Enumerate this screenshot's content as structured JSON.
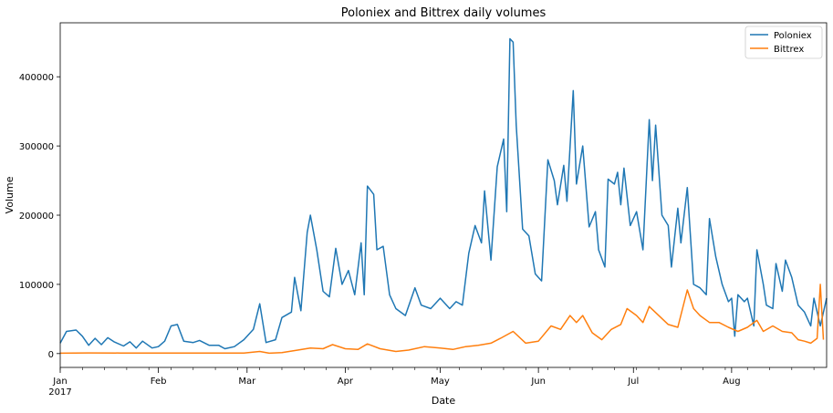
{
  "chart_data": {
    "type": "line",
    "title": "Poloniex and Bittrex daily volumes",
    "xlabel": "Date",
    "ylabel": "Volume",
    "x_start": "2017-01-01",
    "x_end": "2017-08-31",
    "xlim": [
      "2017-01-01",
      "2017-08-31"
    ],
    "ylim": [
      -20000,
      478000
    ],
    "y_ticks": [
      0,
      100000,
      200000,
      300000,
      400000
    ],
    "y_tick_labels": [
      "0",
      "100000",
      "200000",
      "300000",
      "400000"
    ],
    "x_tick_labels": [
      "Jan",
      "Feb",
      "Mar",
      "Apr",
      "May",
      "Jun",
      "Jul",
      "Aug"
    ],
    "x_tick_dates": [
      "2017-01-01",
      "2017-02-01",
      "2017-03-01",
      "2017-04-01",
      "2017-05-01",
      "2017-06-01",
      "2017-07-01",
      "2017-08-01"
    ],
    "x_year_label": "2017",
    "grid": false,
    "legend_position": "top-right",
    "series": [
      {
        "name": "Poloniex",
        "color": "#1f77b4",
        "points": [
          [
            "2017-01-01",
            15000
          ],
          [
            "2017-01-03",
            32000
          ],
          [
            "2017-01-06",
            34000
          ],
          [
            "2017-01-08",
            25000
          ],
          [
            "2017-01-10",
            12000
          ],
          [
            "2017-01-12",
            22000
          ],
          [
            "2017-01-14",
            13000
          ],
          [
            "2017-01-16",
            23000
          ],
          [
            "2017-01-18",
            17000
          ],
          [
            "2017-01-21",
            11000
          ],
          [
            "2017-01-23",
            17000
          ],
          [
            "2017-01-25",
            8000
          ],
          [
            "2017-01-27",
            18000
          ],
          [
            "2017-01-30",
            8000
          ],
          [
            "2017-02-01",
            10000
          ],
          [
            "2017-02-03",
            18000
          ],
          [
            "2017-02-05",
            40000
          ],
          [
            "2017-02-07",
            42000
          ],
          [
            "2017-02-09",
            18000
          ],
          [
            "2017-02-12",
            16000
          ],
          [
            "2017-02-14",
            19000
          ],
          [
            "2017-02-17",
            12000
          ],
          [
            "2017-02-20",
            12000
          ],
          [
            "2017-02-22",
            7000
          ],
          [
            "2017-02-25",
            10000
          ],
          [
            "2017-02-28",
            20000
          ],
          [
            "2017-03-03",
            35000
          ],
          [
            "2017-03-05",
            72000
          ],
          [
            "2017-03-07",
            16000
          ],
          [
            "2017-03-10",
            20000
          ],
          [
            "2017-03-12",
            52000
          ],
          [
            "2017-03-15",
            60000
          ],
          [
            "2017-03-16",
            110000
          ],
          [
            "2017-03-18",
            62000
          ],
          [
            "2017-03-20",
            175000
          ],
          [
            "2017-03-21",
            200000
          ],
          [
            "2017-03-23",
            150000
          ],
          [
            "2017-03-25",
            90000
          ],
          [
            "2017-03-27",
            82000
          ],
          [
            "2017-03-29",
            152000
          ],
          [
            "2017-03-31",
            100000
          ],
          [
            "2017-04-02",
            120000
          ],
          [
            "2017-04-04",
            85000
          ],
          [
            "2017-04-06",
            160000
          ],
          [
            "2017-04-07",
            85000
          ],
          [
            "2017-04-08",
            242000
          ],
          [
            "2017-04-10",
            230000
          ],
          [
            "2017-04-11",
            150000
          ],
          [
            "2017-04-13",
            155000
          ],
          [
            "2017-04-15",
            85000
          ],
          [
            "2017-04-17",
            65000
          ],
          [
            "2017-04-20",
            55000
          ],
          [
            "2017-04-23",
            95000
          ],
          [
            "2017-04-25",
            70000
          ],
          [
            "2017-04-28",
            65000
          ],
          [
            "2017-05-01",
            80000
          ],
          [
            "2017-05-04",
            65000
          ],
          [
            "2017-05-06",
            75000
          ],
          [
            "2017-05-08",
            70000
          ],
          [
            "2017-05-10",
            145000
          ],
          [
            "2017-05-12",
            185000
          ],
          [
            "2017-05-14",
            160000
          ],
          [
            "2017-05-15",
            235000
          ],
          [
            "2017-05-17",
            135000
          ],
          [
            "2017-05-19",
            270000
          ],
          [
            "2017-05-21",
            310000
          ],
          [
            "2017-05-22",
            205000
          ],
          [
            "2017-05-23",
            455000
          ],
          [
            "2017-05-24",
            450000
          ],
          [
            "2017-05-25",
            330000
          ],
          [
            "2017-05-27",
            180000
          ],
          [
            "2017-05-29",
            170000
          ],
          [
            "2017-05-31",
            115000
          ],
          [
            "2017-06-02",
            105000
          ],
          [
            "2017-06-04",
            280000
          ],
          [
            "2017-06-06",
            250000
          ],
          [
            "2017-06-07",
            215000
          ],
          [
            "2017-06-09",
            272000
          ],
          [
            "2017-06-10",
            220000
          ],
          [
            "2017-06-12",
            380000
          ],
          [
            "2017-06-13",
            245000
          ],
          [
            "2017-06-15",
            300000
          ],
          [
            "2017-06-17",
            183000
          ],
          [
            "2017-06-19",
            205000
          ],
          [
            "2017-06-20",
            150000
          ],
          [
            "2017-06-22",
            125000
          ],
          [
            "2017-06-23",
            252000
          ],
          [
            "2017-06-25",
            245000
          ],
          [
            "2017-06-26",
            262000
          ],
          [
            "2017-06-27",
            215000
          ],
          [
            "2017-06-28",
            268000
          ],
          [
            "2017-06-30",
            185000
          ],
          [
            "2017-07-02",
            205000
          ],
          [
            "2017-07-04",
            150000
          ],
          [
            "2017-07-06",
            338000
          ],
          [
            "2017-07-07",
            250000
          ],
          [
            "2017-07-08",
            330000
          ],
          [
            "2017-07-10",
            200000
          ],
          [
            "2017-07-12",
            185000
          ],
          [
            "2017-07-13",
            125000
          ],
          [
            "2017-07-15",
            210000
          ],
          [
            "2017-07-16",
            160000
          ],
          [
            "2017-07-18",
            240000
          ],
          [
            "2017-07-20",
            100000
          ],
          [
            "2017-07-22",
            95000
          ],
          [
            "2017-07-24",
            85000
          ],
          [
            "2017-07-25",
            195000
          ],
          [
            "2017-07-27",
            140000
          ],
          [
            "2017-07-29",
            100000
          ],
          [
            "2017-07-31",
            75000
          ],
          [
            "2017-08-01",
            80000
          ],
          [
            "2017-08-02",
            25000
          ],
          [
            "2017-08-03",
            85000
          ],
          [
            "2017-08-05",
            75000
          ],
          [
            "2017-08-06",
            80000
          ],
          [
            "2017-08-08",
            40000
          ],
          [
            "2017-08-09",
            150000
          ],
          [
            "2017-08-11",
            100000
          ],
          [
            "2017-08-12",
            70000
          ],
          [
            "2017-08-14",
            65000
          ],
          [
            "2017-08-15",
            130000
          ],
          [
            "2017-08-17",
            90000
          ],
          [
            "2017-08-18",
            135000
          ],
          [
            "2017-08-20",
            110000
          ],
          [
            "2017-08-22",
            70000
          ],
          [
            "2017-08-24",
            60000
          ],
          [
            "2017-08-26",
            40000
          ],
          [
            "2017-08-27",
            80000
          ],
          [
            "2017-08-29",
            40000
          ],
          [
            "2017-08-31",
            80000
          ]
        ]
      },
      {
        "name": "Bittrex",
        "color": "#ff7f0e",
        "points": [
          [
            "2017-01-01",
            500
          ],
          [
            "2017-01-10",
            1000
          ],
          [
            "2017-01-20",
            800
          ],
          [
            "2017-01-31",
            800
          ],
          [
            "2017-02-10",
            700
          ],
          [
            "2017-02-20",
            800
          ],
          [
            "2017-02-28",
            800
          ],
          [
            "2017-03-05",
            3000
          ],
          [
            "2017-03-08",
            500
          ],
          [
            "2017-03-12",
            1500
          ],
          [
            "2017-03-17",
            5000
          ],
          [
            "2017-03-21",
            8000
          ],
          [
            "2017-03-25",
            7000
          ],
          [
            "2017-03-28",
            13000
          ],
          [
            "2017-04-01",
            7000
          ],
          [
            "2017-04-05",
            6000
          ],
          [
            "2017-04-08",
            14000
          ],
          [
            "2017-04-12",
            7000
          ],
          [
            "2017-04-17",
            3000
          ],
          [
            "2017-04-21",
            5000
          ],
          [
            "2017-04-26",
            10000
          ],
          [
            "2017-05-01",
            8000
          ],
          [
            "2017-05-05",
            6000
          ],
          [
            "2017-05-09",
            10000
          ],
          [
            "2017-05-13",
            12000
          ],
          [
            "2017-05-17",
            15000
          ],
          [
            "2017-05-20",
            22000
          ],
          [
            "2017-05-24",
            32000
          ],
          [
            "2017-05-28",
            15000
          ],
          [
            "2017-06-01",
            18000
          ],
          [
            "2017-06-05",
            40000
          ],
          [
            "2017-06-08",
            35000
          ],
          [
            "2017-06-11",
            55000
          ],
          [
            "2017-06-13",
            45000
          ],
          [
            "2017-06-15",
            55000
          ],
          [
            "2017-06-18",
            30000
          ],
          [
            "2017-06-21",
            20000
          ],
          [
            "2017-06-24",
            35000
          ],
          [
            "2017-06-27",
            42000
          ],
          [
            "2017-06-29",
            65000
          ],
          [
            "2017-07-02",
            55000
          ],
          [
            "2017-07-04",
            45000
          ],
          [
            "2017-07-06",
            68000
          ],
          [
            "2017-07-09",
            55000
          ],
          [
            "2017-07-12",
            42000
          ],
          [
            "2017-07-15",
            38000
          ],
          [
            "2017-07-18",
            92000
          ],
          [
            "2017-07-20",
            65000
          ],
          [
            "2017-07-22",
            55000
          ],
          [
            "2017-07-25",
            45000
          ],
          [
            "2017-07-28",
            45000
          ],
          [
            "2017-07-31",
            38000
          ],
          [
            "2017-08-03",
            32000
          ],
          [
            "2017-08-06",
            38000
          ],
          [
            "2017-08-09",
            48000
          ],
          [
            "2017-08-11",
            32000
          ],
          [
            "2017-08-14",
            40000
          ],
          [
            "2017-08-17",
            32000
          ],
          [
            "2017-08-20",
            30000
          ],
          [
            "2017-08-22",
            20000
          ],
          [
            "2017-08-24",
            18000
          ],
          [
            "2017-08-26",
            15000
          ],
          [
            "2017-08-28",
            22000
          ],
          [
            "2017-08-29",
            100000
          ],
          [
            "2017-08-30",
            20000
          ]
        ]
      }
    ]
  }
}
